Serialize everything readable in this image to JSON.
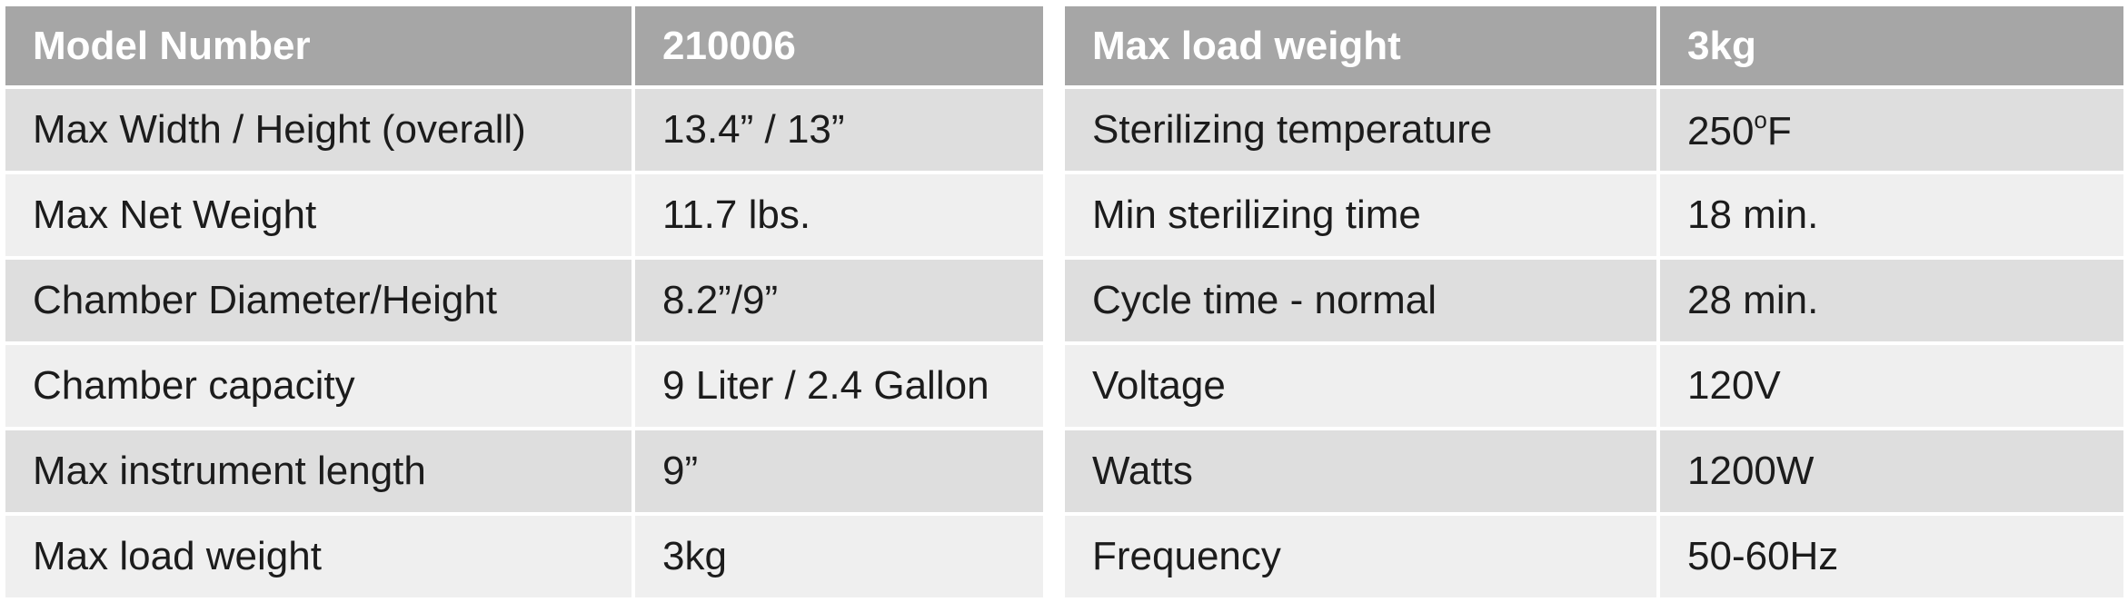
{
  "left_table": {
    "header": {
      "label": "Model Number",
      "value": "210006"
    },
    "rows": [
      {
        "label": "Max Width / Height (overall)",
        "value": "13.4” / 13”"
      },
      {
        "label": "Max Net Weight",
        "value": "11.7 lbs."
      },
      {
        "label": "Chamber Diameter/Height",
        "value": "8.2”/9”"
      },
      {
        "label": "Chamber capacity",
        "value": "9 Liter / 2.4 Gallon"
      },
      {
        "label": "Max instrument length",
        "value": "9”"
      },
      {
        "label": "Max load weight",
        "value": "3kg"
      }
    ]
  },
  "right_table": {
    "header": {
      "label": "Max load weight",
      "value": "3kg"
    },
    "rows": [
      {
        "label": "Sterilizing temperature",
        "value_main": "250",
        "value_sup": "o",
        "value_unit": "F"
      },
      {
        "label": "Min sterilizing time",
        "value": "18 min."
      },
      {
        "label": "Cycle time - normal",
        "value": "28 min."
      },
      {
        "label": "Voltage",
        "value": "120V"
      },
      {
        "label": "Watts",
        "value": "1200W"
      },
      {
        "label": "Frequency",
        "value": "50-60Hz"
      }
    ]
  },
  "colors": {
    "header_bg": "#a6a6a6",
    "header_text": "#ffffff",
    "row_bg_dark": "#dedede",
    "row_bg_light": "#efefef",
    "body_text": "#1c1c1c"
  }
}
